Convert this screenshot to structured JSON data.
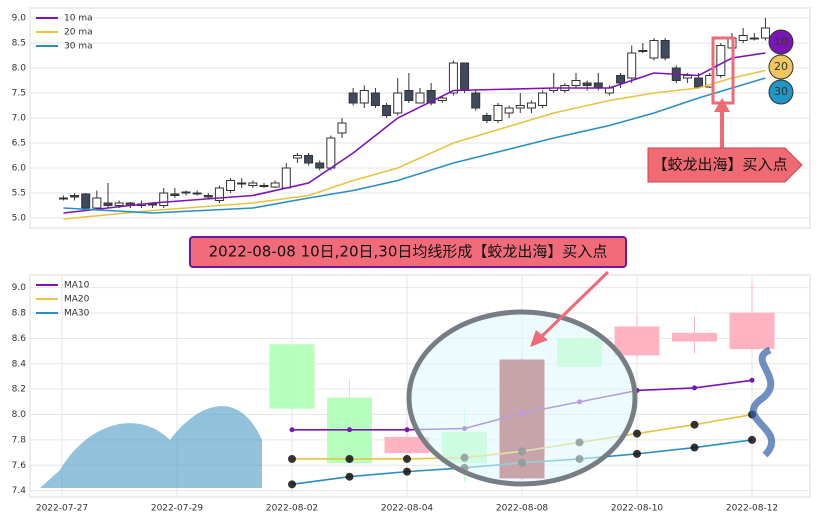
{
  "banner": "2022-08-08 10日,20日,30日均线形成【蛟龙出海】买入点",
  "callout": "【蛟龙出海】买入点",
  "badges": [
    "10",
    "20",
    "30"
  ],
  "chart_data": [
    {
      "type": "candlestick",
      "legend": "upper left",
      "grid": true,
      "up_color": "#ffffff",
      "down_color": "#3f4a5e",
      "ylim": [
        4.8,
        9.2
      ],
      "yticks": [
        {
          "value": 5,
          "label": "5.0"
        },
        5.5,
        {
          "value": 6,
          "label": "6.0"
        },
        6.5,
        {
          "value": 7,
          "label": "7.0"
        },
        7.5,
        {
          "value": 8,
          "label": "8.0"
        },
        8.5,
        {
          "value": 9,
          "label": "9.0"
        }
      ],
      "xlim": [
        -3,
        67
      ],
      "open": [
        5.38,
        5.45,
        5.48,
        5.2,
        5.3,
        5.25,
        5.3,
        5.25,
        5.28,
        5.25,
        5.48,
        5.5,
        5.5,
        5.45,
        5.35,
        5.55,
        5.7,
        5.65,
        5.65,
        5.62,
        5.6,
        6.2,
        6.25,
        6.1,
        6.0,
        6.7,
        7.5,
        7.3,
        7.5,
        7.25,
        7.1,
        7.55,
        7.3,
        7.55,
        7.35,
        7.5,
        8.1,
        7.5,
        7.05,
        6.95,
        7.1,
        7.2,
        7.2,
        7.25,
        7.55,
        7.55,
        7.65,
        7.7,
        7.7,
        7.5,
        7.85,
        7.8,
        8.35,
        8.2,
        8.55,
        8.0,
        7.8,
        7.8,
        7.62,
        7.85,
        8.4,
        8.55,
        8.6,
        8.6
      ],
      "high": [
        5.45,
        5.5,
        5.5,
        5.55,
        5.7,
        5.35,
        5.32,
        5.35,
        5.3,
        5.6,
        5.6,
        5.55,
        5.55,
        5.5,
        5.65,
        5.8,
        5.8,
        5.75,
        5.7,
        5.75,
        6.1,
        6.3,
        6.3,
        6.15,
        6.65,
        7.0,
        7.6,
        7.65,
        7.6,
        7.3,
        7.8,
        7.9,
        7.6,
        7.7,
        7.45,
        8.15,
        8.1,
        7.55,
        7.1,
        7.3,
        7.25,
        7.5,
        7.35,
        7.55,
        7.9,
        7.7,
        7.9,
        7.75,
        7.9,
        7.65,
        7.9,
        8.45,
        8.5,
        8.6,
        8.6,
        8.05,
        7.9,
        7.9,
        7.9,
        8.5,
        8.7,
        8.8,
        8.7,
        9.0
      ],
      "low": [
        5.35,
        5.35,
        5.15,
        5.18,
        5.2,
        5.2,
        5.2,
        5.2,
        5.2,
        5.2,
        5.4,
        5.45,
        5.45,
        5.38,
        5.3,
        5.5,
        5.6,
        5.6,
        5.6,
        5.6,
        5.6,
        6.1,
        6.05,
        5.95,
        5.95,
        6.6,
        7.25,
        7.2,
        7.2,
        7.0,
        7.05,
        7.3,
        7.3,
        7.25,
        7.3,
        7.45,
        7.5,
        7.15,
        6.9,
        6.9,
        7.0,
        7.1,
        7.1,
        7.2,
        7.5,
        7.5,
        7.6,
        7.55,
        7.55,
        7.45,
        7.6,
        7.7,
        8.3,
        8.15,
        8.15,
        7.7,
        7.7,
        7.6,
        7.6,
        7.8,
        8.35,
        8.5,
        8.55,
        8.55
      ],
      "close": [
        5.4,
        5.42,
        5.2,
        5.4,
        5.25,
        5.3,
        5.25,
        5.28,
        5.26,
        5.5,
        5.45,
        5.52,
        5.5,
        5.42,
        5.6,
        5.75,
        5.68,
        5.7,
        5.65,
        5.7,
        6.0,
        6.25,
        6.1,
        6.0,
        6.6,
        6.9,
        7.3,
        7.55,
        7.25,
        7.05,
        7.5,
        7.35,
        7.5,
        7.3,
        7.4,
        8.1,
        7.55,
        7.2,
        6.95,
        7.25,
        7.2,
        7.25,
        7.3,
        7.5,
        7.6,
        7.65,
        7.75,
        7.65,
        7.6,
        7.6,
        7.7,
        8.3,
        8.35,
        8.55,
        8.2,
        7.75,
        7.85,
        7.62,
        7.85,
        8.45,
        8.6,
        8.65,
        8.58,
        8.8
      ],
      "series": [
        {
          "name": "10 ma",
          "color": "#7b16b5",
          "x": [
            0,
            8,
            17,
            22,
            26,
            30,
            35,
            44,
            49,
            53,
            57,
            60,
            63
          ],
          "values": [
            5.1,
            5.3,
            5.45,
            5.7,
            6.3,
            7.0,
            7.55,
            7.6,
            7.6,
            7.9,
            7.85,
            8.2,
            8.3
          ]
        },
        {
          "name": "20 ma",
          "color": "#e8c440",
          "x": [
            0,
            8,
            17,
            22,
            26,
            30,
            35,
            44,
            49,
            53,
            57,
            60,
            63
          ],
          "values": [
            4.98,
            5.15,
            5.3,
            5.45,
            5.75,
            6.0,
            6.5,
            7.1,
            7.35,
            7.5,
            7.6,
            7.8,
            7.95
          ]
        },
        {
          "name": "30 ma",
          "color": "#2a8fc0",
          "x": [
            0,
            8,
            17,
            22,
            26,
            30,
            35,
            44,
            49,
            53,
            57,
            60,
            63
          ],
          "values": [
            5.2,
            5.1,
            5.2,
            5.4,
            5.55,
            5.75,
            6.1,
            6.6,
            6.85,
            7.1,
            7.4,
            7.6,
            7.8
          ]
        }
      ]
    },
    {
      "type": "candlestick",
      "legend": "upper left",
      "grid": true,
      "up_color": "#ffb3c0",
      "down_color": "#b6ffbd",
      "highlight": "2022-08-08",
      "highlight_color": "#a3262a",
      "ylim": [
        7.35,
        9.1
      ],
      "yticks": [
        7.4,
        7.6,
        7.8,
        {
          "value": 8,
          "label": "8.0"
        },
        8.2,
        8.4,
        8.6,
        8.8,
        {
          "value": 9,
          "label": "9.0"
        }
      ],
      "categories": [
        "2022-07-27",
        null,
        "2022-07-29",
        null,
        "2022-08-02",
        null,
        "2022-08-04",
        null,
        "2022-08-08",
        null,
        "2022-08-10",
        null,
        "2022-08-12"
      ],
      "open": [
        null,
        null,
        null,
        null,
        8.55,
        8.13,
        7.7,
        7.86,
        7.5,
        8.6,
        8.47,
        8.58,
        8.52
      ],
      "high": [
        null,
        null,
        null,
        null,
        8.55,
        8.28,
        7.96,
        8.04,
        8.44,
        8.62,
        8.79,
        8.78,
        9.03
      ],
      "low": [
        null,
        null,
        null,
        null,
        8.05,
        7.62,
        7.62,
        7.47,
        7.49,
        8.38,
        8.45,
        8.48,
        8.5
      ],
      "close": [
        null,
        null,
        null,
        null,
        8.05,
        7.62,
        7.82,
        7.62,
        8.43,
        8.38,
        8.69,
        8.64,
        8.8
      ],
      "series": [
        {
          "name": "MA10",
          "color": "#7b16b5",
          "values": [
            null,
            null,
            null,
            null,
            7.88,
            7.88,
            7.88,
            7.89,
            8.01,
            8.1,
            8.19,
            8.21,
            8.27
          ]
        },
        {
          "name": "MA20",
          "color": "#e8c440",
          "values": [
            null,
            null,
            null,
            null,
            7.65,
            7.65,
            7.65,
            7.66,
            7.71,
            7.78,
            7.85,
            7.92,
            8.0
          ]
        },
        {
          "name": "MA30",
          "color": "#2a8fc0",
          "values": [
            null,
            null,
            null,
            null,
            7.45,
            7.51,
            7.55,
            7.58,
            7.62,
            7.65,
            7.69,
            7.74,
            7.8
          ]
        }
      ]
    }
  ]
}
